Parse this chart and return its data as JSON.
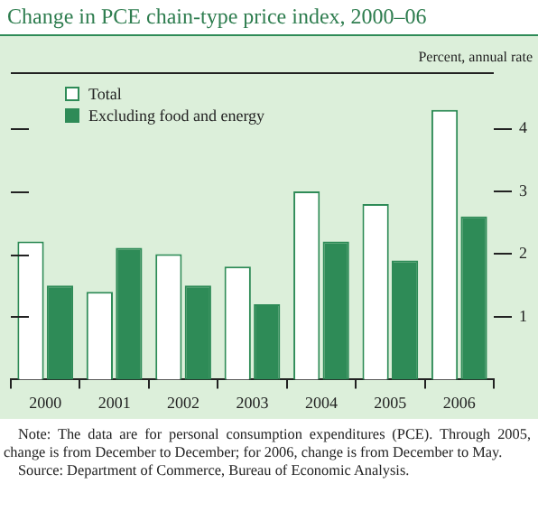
{
  "chart_data": {
    "type": "bar",
    "title": "Change in PCE chain-type price index, 2000–06",
    "ylabel": "Percent, annual rate",
    "categories": [
      "2000",
      "2001",
      "2002",
      "2003",
      "2004",
      "2005",
      "2006"
    ],
    "series": [
      {
        "name": "Total",
        "color": "#ffffff",
        "values": [
          2.2,
          1.4,
          2.0,
          1.8,
          3.0,
          2.8,
          4.3
        ]
      },
      {
        "name": "Excluding food and energy",
        "color": "#2e8b57",
        "values": [
          1.5,
          2.1,
          1.5,
          1.2,
          2.2,
          1.9,
          2.6
        ]
      }
    ],
    "ylim": [
      0,
      4.9
    ],
    "yticks": [
      1,
      2,
      3,
      4
    ],
    "legend": "top left",
    "annotations": [
      "Note: The data are for personal consumption expenditures (PCE). Through 2005, change is from December to December; for 2006, change is from December to May.",
      "Source: Department of Commerce, Bureau of Economic Analysis."
    ]
  }
}
